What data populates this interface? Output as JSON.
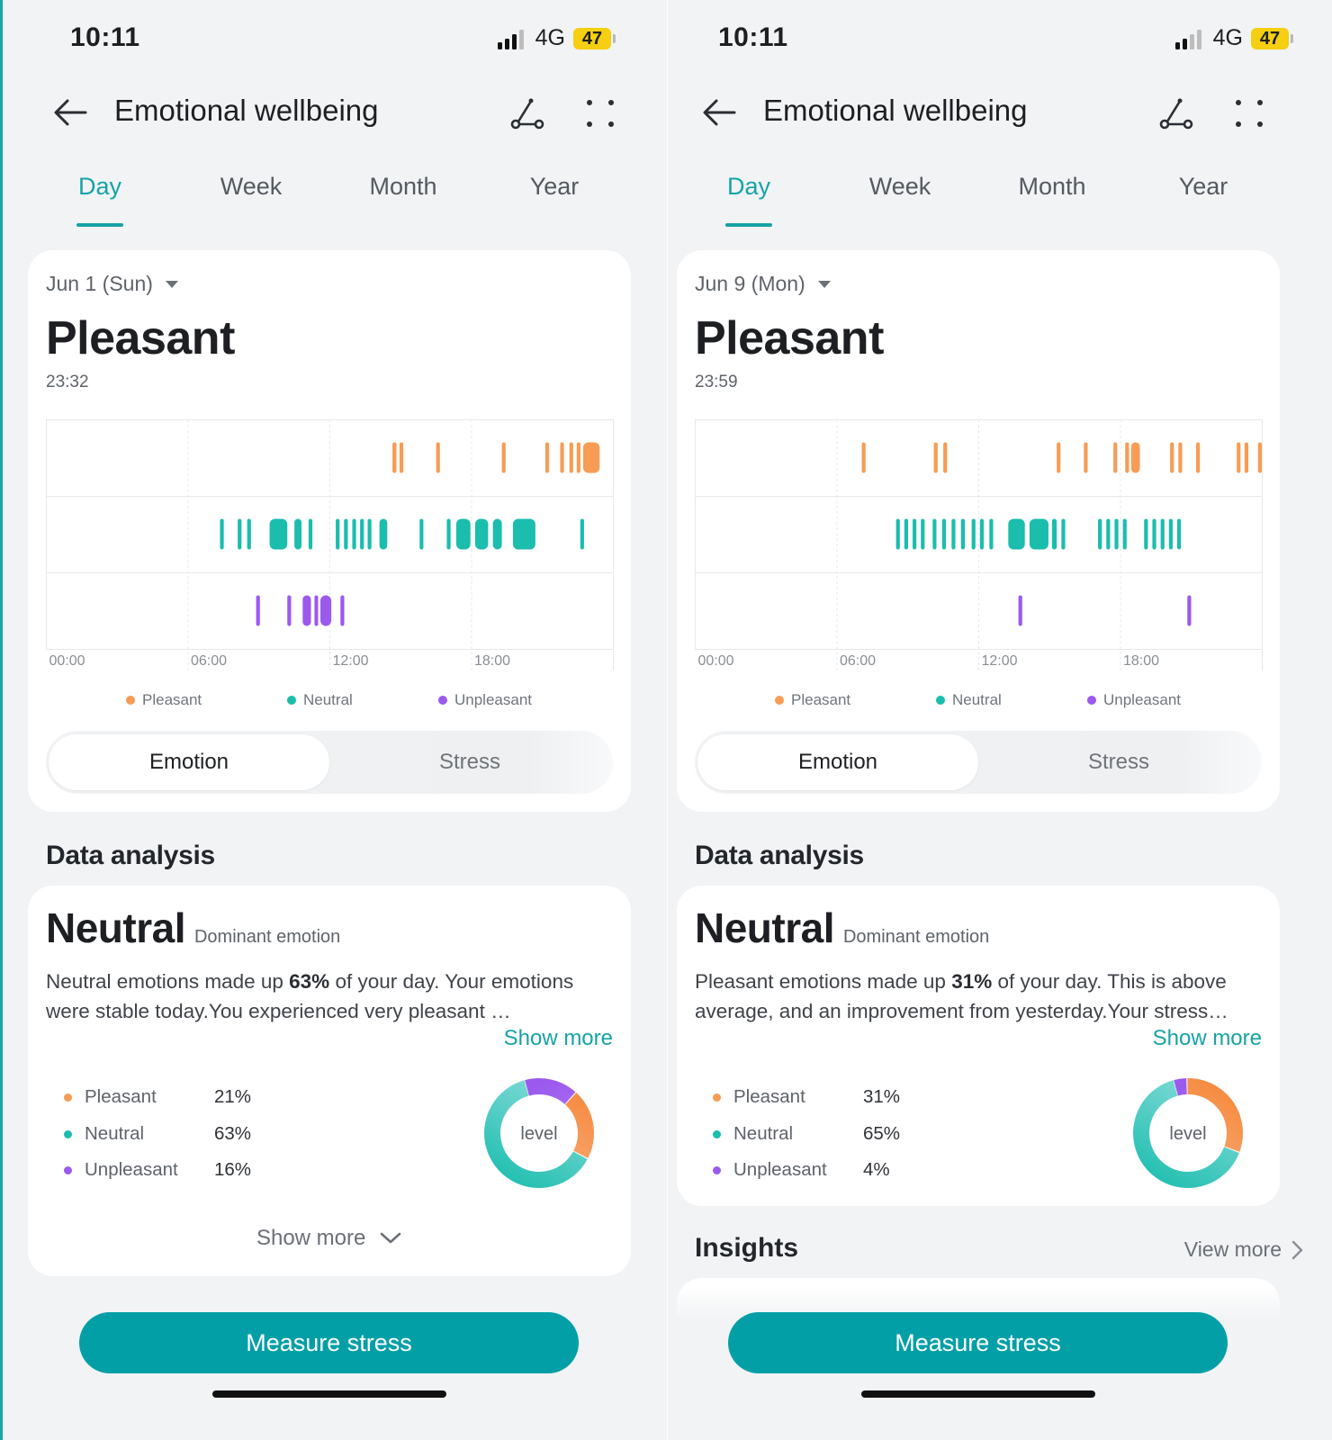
{
  "colors": {
    "accent": "#16a3a6",
    "button": "#039fa7",
    "pleasant": "#f79c54",
    "neutral": "#1bbdad",
    "unpleasant": "#9b59ee",
    "battery": "#f5cf10"
  },
  "screens": [
    {
      "status": {
        "time": "10:11",
        "network": "4G",
        "battery": "47"
      },
      "header": {
        "title": "Emotional wellbeing",
        "icons": [
          "back-arrow-icon",
          "route-icon",
          "more-dots-icon"
        ]
      },
      "tabs": [
        "Day",
        "Week",
        "Month",
        "Year"
      ],
      "active_tab": "Day",
      "summary": {
        "date": "Jun 1 (Sun)",
        "emotion": "Pleasant",
        "time": "23:32"
      },
      "chart_data": {
        "type": "timeline",
        "x_ticks": [
          "00:00",
          "06:00",
          "12:00",
          "18:00"
        ],
        "x_range_hours": [
          0,
          24
        ],
        "rows": [
          "Pleasant",
          "Neutral",
          "Unpleasant"
        ],
        "legend": [
          "Pleasant",
          "Neutral",
          "Unpleasant"
        ],
        "events": {
          "Pleasant": [
            [
              14.65,
              14.82
            ],
            [
              14.95,
              15.11
            ],
            [
              16.5,
              16.66
            ],
            [
              19.28,
              19.44
            ],
            [
              21.12,
              21.28
            ],
            [
              21.75,
              21.91
            ],
            [
              22.14,
              22.3
            ],
            [
              22.45,
              22.61
            ],
            [
              22.72,
              23.42
            ]
          ],
          "Neutral": [
            [
              7.35,
              7.51
            ],
            [
              8.1,
              8.26
            ],
            [
              8.5,
              8.66
            ],
            [
              9.45,
              10.2
            ],
            [
              10.5,
              10.8
            ],
            [
              11.1,
              11.26
            ],
            [
              12.25,
              12.41
            ],
            [
              12.6,
              12.76
            ],
            [
              12.95,
              13.11
            ],
            [
              13.28,
              13.44
            ],
            [
              13.6,
              13.76
            ],
            [
              14.1,
              14.43
            ],
            [
              15.8,
              15.96
            ],
            [
              16.95,
              17.11
            ],
            [
              17.35,
              17.95
            ],
            [
              18.15,
              18.7
            ],
            [
              18.9,
              19.28
            ],
            [
              19.75,
              20.7
            ],
            [
              22.6,
              22.76
            ]
          ],
          "Unpleasant": [
            [
              8.88,
              9.04
            ],
            [
              10.2,
              10.36
            ],
            [
              10.85,
              11.2
            ],
            [
              11.35,
              11.5
            ],
            [
              11.6,
              12.06
            ],
            [
              12.45,
              12.61
            ]
          ]
        }
      },
      "toggle": {
        "active": "Emotion",
        "inactive": "Stress"
      },
      "analysis": {
        "section_title": "Data analysis",
        "dominant_value": "Neutral",
        "dominant_label": "Dominant emotion",
        "text_before": "Neutral emotions made up ",
        "text_bold": "63%",
        "text_after": " of your day. Your emotions were stable today.You experienced very pleasant …",
        "show_more": "Show more",
        "breakdown": [
          {
            "label": "Pleasant",
            "percent": "21%"
          },
          {
            "label": "Neutral",
            "percent": "63%"
          },
          {
            "label": "Unpleasant",
            "percent": "16%"
          }
        ],
        "donut_label": "level",
        "donut_shares": {
          "unpleasant": 16,
          "pleasant": 21,
          "neutral": 63
        },
        "bottom_show_more": "Show more"
      },
      "measure_button": "Measure stress"
    },
    {
      "status": {
        "time": "10:11",
        "network": "4G",
        "battery": "47"
      },
      "header": {
        "title": "Emotional wellbeing",
        "icons": [
          "back-arrow-icon",
          "route-icon",
          "more-dots-icon"
        ]
      },
      "tabs": [
        "Day",
        "Week",
        "Month",
        "Year"
      ],
      "active_tab": "Day",
      "summary": {
        "date": "Jun 9 (Mon)",
        "emotion": "Pleasant",
        "time": "23:59"
      },
      "chart_data": {
        "type": "timeline",
        "x_ticks": [
          "00:00",
          "06:00",
          "12:00",
          "18:00"
        ],
        "x_range_hours": [
          0,
          24
        ],
        "rows": [
          "Pleasant",
          "Neutral",
          "Unpleasant"
        ],
        "legend": [
          "Pleasant",
          "Neutral",
          "Unpleasant"
        ],
        "events": {
          "Pleasant": [
            [
              7.05,
              7.21
            ],
            [
              10.1,
              10.26
            ],
            [
              10.5,
              10.66
            ],
            [
              15.3,
              15.46
            ],
            [
              16.45,
              16.61
            ],
            [
              17.7,
              17.86
            ],
            [
              18.2,
              18.36
            ],
            [
              18.45,
              18.82
            ],
            [
              20.1,
              20.26
            ],
            [
              20.45,
              20.61
            ],
            [
              21.2,
              21.36
            ],
            [
              22.92,
              23.08
            ],
            [
              23.25,
              23.41
            ],
            [
              23.82,
              23.98
            ]
          ],
          "Neutral": [
            [
              8.5,
              8.66
            ],
            [
              8.85,
              9.01
            ],
            [
              9.2,
              9.36
            ],
            [
              9.55,
              9.71
            ],
            [
              10.05,
              10.21
            ],
            [
              10.45,
              10.61
            ],
            [
              10.85,
              11.01
            ],
            [
              11.25,
              11.41
            ],
            [
              11.7,
              11.86
            ],
            [
              12.05,
              12.21
            ],
            [
              12.45,
              12.61
            ],
            [
              13.25,
              13.95
            ],
            [
              14.15,
              14.95
            ],
            [
              15.1,
              15.3
            ],
            [
              15.5,
              15.66
            ],
            [
              17.05,
              17.21
            ],
            [
              17.4,
              17.56
            ],
            [
              17.75,
              17.91
            ],
            [
              18.1,
              18.26
            ],
            [
              19.0,
              19.16
            ],
            [
              19.35,
              19.51
            ],
            [
              19.7,
              19.86
            ],
            [
              20.05,
              20.21
            ],
            [
              20.4,
              20.56
            ]
          ],
          "Unpleasant": [
            [
              13.68,
              13.84
            ],
            [
              20.83,
              20.99
            ]
          ]
        }
      },
      "toggle": {
        "active": "Emotion",
        "inactive": "Stress"
      },
      "analysis": {
        "section_title": "Data analysis",
        "dominant_value": "Neutral",
        "dominant_label": "Dominant emotion",
        "text_before": "Pleasant emotions made up ",
        "text_bold": "31%",
        "text_after": " of your day. This is above average, and an improvement from yesterday.Your stress…",
        "show_more": "Show more",
        "breakdown": [
          {
            "label": "Pleasant",
            "percent": "31%"
          },
          {
            "label": "Neutral",
            "percent": "65%"
          },
          {
            "label": "Unpleasant",
            "percent": "4%"
          }
        ],
        "donut_label": "level",
        "donut_shares": {
          "unpleasant": 4,
          "pleasant": 31,
          "neutral": 65
        }
      },
      "insights": {
        "title": "Insights",
        "view_more": "View more"
      },
      "measure_button": "Measure stress"
    }
  ]
}
